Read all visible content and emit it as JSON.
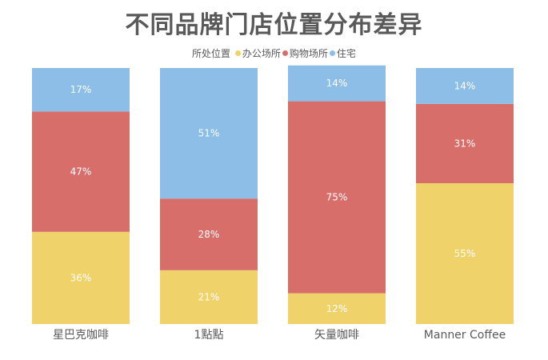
{
  "chart_data": {
    "type": "bar",
    "stacked": true,
    "percent": true,
    "title": "不同品牌门店位置分布差异",
    "legend_title": "所处位置",
    "legend_position": "top",
    "categories": [
      "星巴克咖啡",
      "1點點",
      "矢量咖啡",
      "Manner Coffee"
    ],
    "series": [
      {
        "name": "办公场所",
        "color": "#F0D26A",
        "values": [
          36,
          21,
          12,
          55
        ]
      },
      {
        "name": "购物场所",
        "color": "#D86E6A",
        "values": [
          47,
          28,
          75,
          31
        ]
      },
      {
        "name": "住宅",
        "color": "#8CBEE8",
        "values": [
          17,
          51,
          14,
          14
        ]
      }
    ],
    "value_suffix": "%",
    "ylim": [
      0,
      100
    ],
    "grid": false
  }
}
